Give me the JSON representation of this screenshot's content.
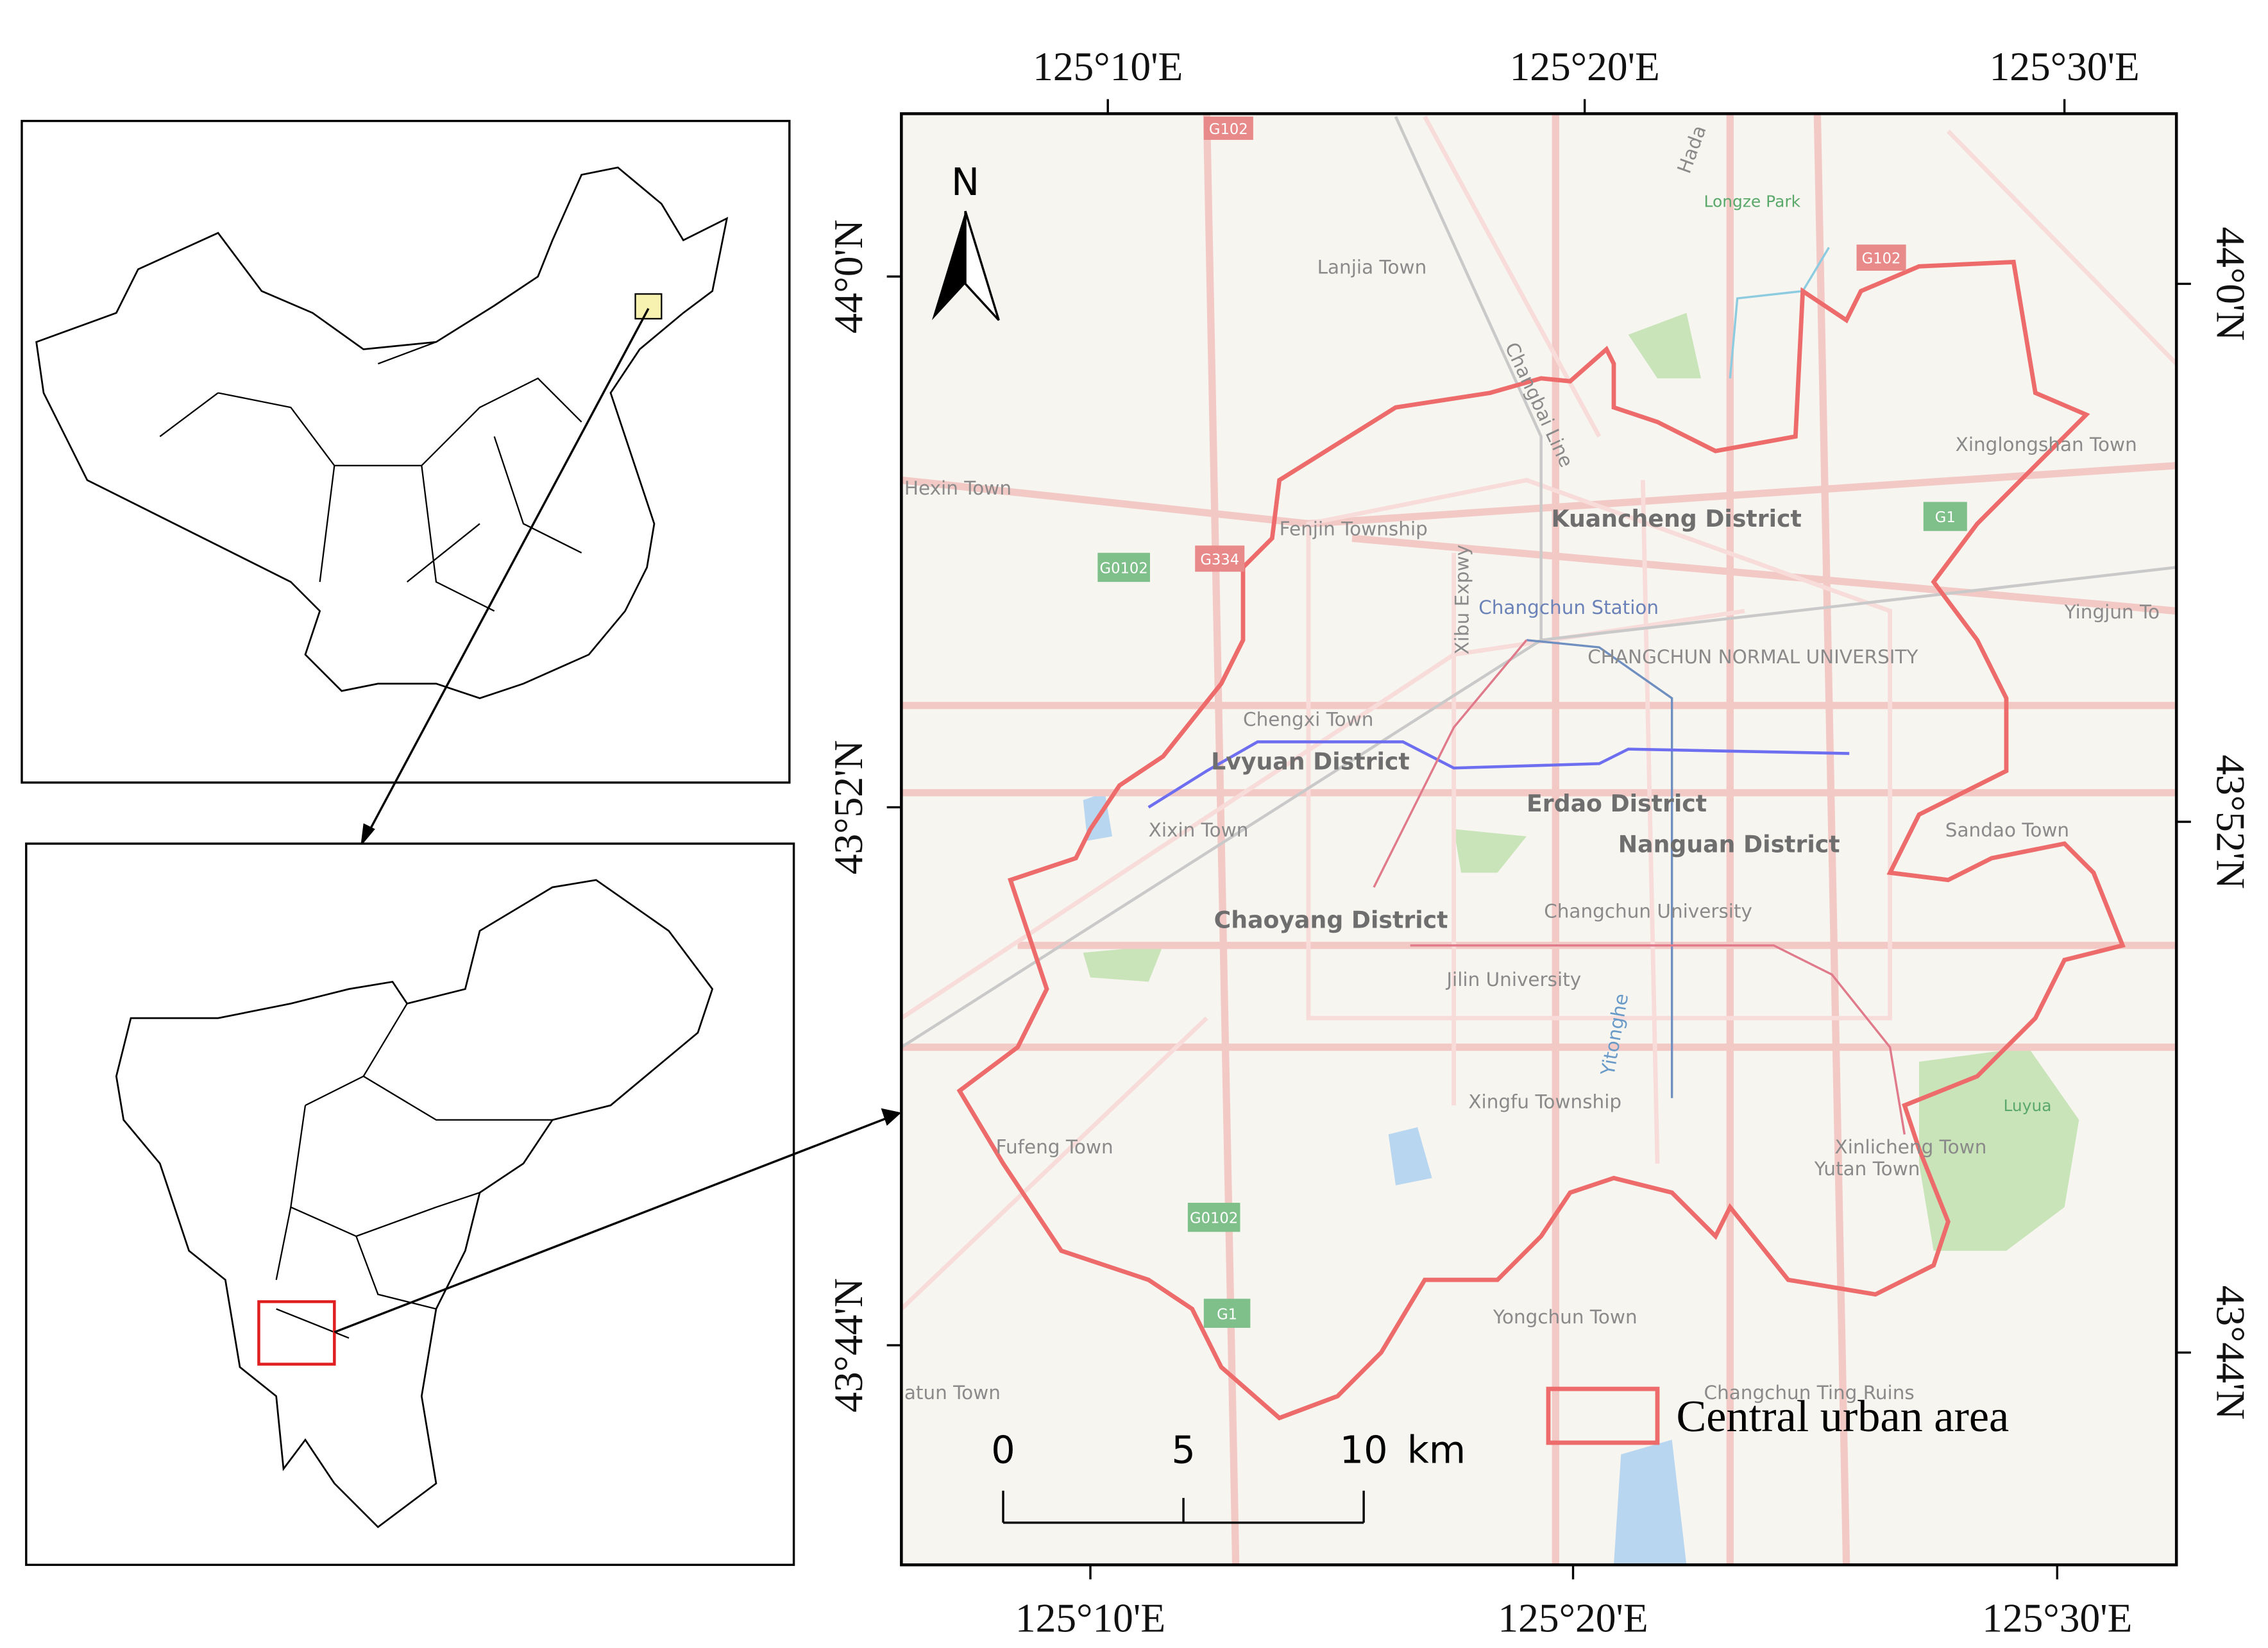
{
  "map": {
    "top_longitudes": [
      "125°10'E",
      "125°20'E",
      "125°30'E"
    ],
    "bottom_longitudes": [
      "125°10'E",
      "125°20'E",
      "125°30'E"
    ],
    "left_latitudes": [
      "44°0'N",
      "43°52'N",
      "43°44'N"
    ],
    "right_latitudes": [
      "44°0'N",
      "43°52'N",
      "43°44'N"
    ],
    "north": "N",
    "district_labels": [
      "Kuancheng District",
      "Lvyuan District",
      "Erdao District",
      "Nanguan District",
      "Chaoyang District"
    ],
    "place_labels": [
      "Lanjia Town",
      "Longze Park",
      "Hada",
      "Changbai Line",
      "Xinglongshan Town",
      "Hexin Town",
      "Fenjin Township",
      "Xibu Expwy",
      "Changchun Station",
      "CHANGCHUN NORMAL UNIVERSITY",
      "Yingjun To",
      "Chengxi Town",
      "Xixin Town",
      "Sandao Town",
      "Changchun University",
      "Jilin University",
      "Yitonghe",
      "Xingfu Township",
      "Fufeng Town",
      "Xinlicheng Town",
      "Yutan Town",
      "Luyua",
      "Yongchun Town",
      "Changchun Ting Ruins",
      "atun Town"
    ],
    "road_shields": [
      "G102",
      "G102",
      "G334",
      "G0102",
      "G1",
      "G0102",
      "G1"
    ],
    "scale_bar": {
      "labels": [
        "0",
        "5",
        "10"
      ],
      "unit": "km"
    },
    "legend": "Central urban area"
  }
}
